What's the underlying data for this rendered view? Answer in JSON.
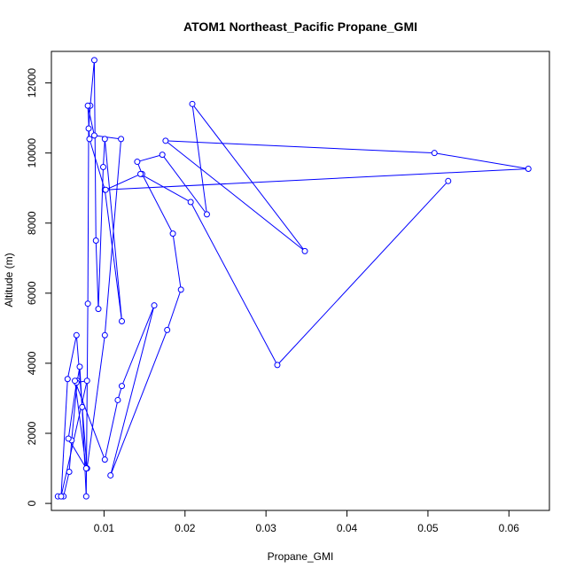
{
  "chart_data": {
    "type": "scatter",
    "title": "ATOM1 Northeast_Pacific Propane_GMI",
    "xlabel": "Propane_GMI",
    "ylabel": "Altitude (m)",
    "xlim": [
      0.0035,
      0.065
    ],
    "ylim": [
      -200,
      12900
    ],
    "x_ticks": [
      0.01,
      0.02,
      0.03,
      0.04,
      0.05,
      0.06
    ],
    "x_tick_labels": [
      "0.01",
      "0.02",
      "0.03",
      "0.04",
      "0.05",
      "0.06"
    ],
    "y_ticks": [
      0,
      2000,
      4000,
      6000,
      8000,
      10000,
      12000
    ],
    "y_tick_labels": [
      "0",
      "2000",
      "4000",
      "6000",
      "8000",
      "10000",
      "12000"
    ],
    "grid": false,
    "connected": true,
    "color": "#0000ff",
    "series": [
      {
        "x": [
          0.0043,
          0.005,
          0.0057,
          0.006,
          0.0067,
          0.007,
          0.0073,
          0.0078,
          0.008,
          0.0081,
          0.0083,
          0.0088,
          0.009,
          0.0093,
          0.0099,
          0.0101,
          0.0122,
          0.0101,
          0.0082,
          0.008,
          0.0088,
          0.0121,
          0.0101,
          0.0079,
          0.0066,
          0.0055,
          0.0047,
          0.0079,
          0.0066,
          0.0056,
          0.0078,
          0.0064,
          0.0101,
          0.0117,
          0.0122,
          0.0162,
          0.0108,
          0.0178,
          0.0195,
          0.0185,
          0.0147,
          0.0141,
          0.0172,
          0.0227,
          0.0209,
          0.0348,
          0.0176,
          0.0508,
          0.0624,
          0.0102,
          0.0145,
          0.0207,
          0.0314,
          0.0525
        ],
        "y": [
          200,
          200,
          900,
          1800,
          3500,
          3900,
          2750,
          200,
          5700,
          10700,
          11350,
          12650,
          7500,
          5550,
          9600,
          10400,
          5200,
          8950,
          10400,
          11350,
          10500,
          10400,
          4800,
          1000,
          4800,
          3550,
          200,
          3500,
          3450,
          1850,
          1000,
          3500,
          1250,
          2950,
          3350,
          5650,
          800,
          4950,
          6100,
          7700,
          9400,
          9750,
          9950,
          8250,
          11400,
          7200,
          10350,
          10000,
          9550,
          8950,
          9400,
          8600,
          3950,
          9200
        ]
      }
    ]
  }
}
